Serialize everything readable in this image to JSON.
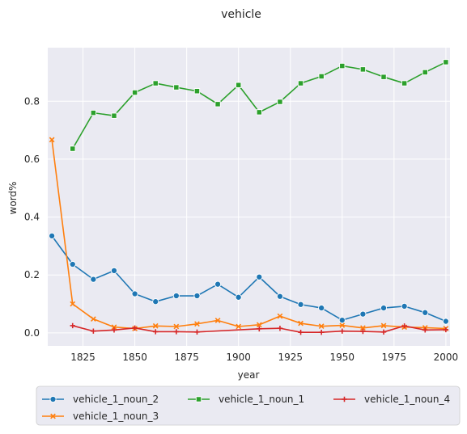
{
  "chart_data": {
    "type": "line",
    "title": "vehicle",
    "xlabel": "year",
    "ylabel": "word%",
    "xlim": [
      1808,
      2002
    ],
    "ylim": [
      -0.045,
      0.985
    ],
    "x_ticks": [
      1825,
      1850,
      1875,
      1900,
      1925,
      1950,
      1975,
      2000
    ],
    "y_ticks": [
      0.0,
      0.2,
      0.4,
      0.6,
      0.8
    ],
    "y_tick_labels": [
      "0.0",
      "0.2",
      "0.4",
      "0.6",
      "0.8"
    ],
    "grid": true,
    "legend_placement": "bottom",
    "series": [
      {
        "name": "vehicle_1_noun_2",
        "color": "#1f77b4",
        "marker": "circle",
        "points": [
          [
            1810,
            0.335
          ],
          [
            1820,
            0.237
          ],
          [
            1830,
            0.185
          ],
          [
            1840,
            0.215
          ],
          [
            1850,
            0.135
          ],
          [
            1860,
            0.108
          ],
          [
            1870,
            0.128
          ],
          [
            1880,
            0.128
          ],
          [
            1890,
            0.168
          ],
          [
            1900,
            0.123
          ],
          [
            1910,
            0.193
          ],
          [
            1920,
            0.126
          ],
          [
            1930,
            0.098
          ],
          [
            1940,
            0.086
          ],
          [
            1950,
            0.044
          ],
          [
            1960,
            0.065
          ],
          [
            1970,
            0.086
          ],
          [
            1980,
            0.092
          ],
          [
            1990,
            0.07
          ],
          [
            2000,
            0.04
          ]
        ]
      },
      {
        "name": "vehicle_1_noun_3",
        "color": "#ff7f0e",
        "marker": "x",
        "points": [
          [
            1810,
            0.667
          ],
          [
            1820,
            0.1
          ],
          [
            1830,
            0.048
          ],
          [
            1840,
            0.02
          ],
          [
            1850,
            0.015
          ],
          [
            1860,
            0.024
          ],
          [
            1870,
            0.022
          ],
          [
            1880,
            0.031
          ],
          [
            1890,
            0.043
          ],
          [
            1900,
            0.022
          ],
          [
            1910,
            0.028
          ],
          [
            1920,
            0.058
          ],
          [
            1930,
            0.033
          ],
          [
            1940,
            0.023
          ],
          [
            1950,
            0.026
          ],
          [
            1960,
            0.017
          ],
          [
            1970,
            0.025
          ],
          [
            1980,
            0.02
          ],
          [
            1990,
            0.018
          ],
          [
            2000,
            0.015
          ]
        ]
      },
      {
        "name": "vehicle_1_noun_1",
        "color": "#2ca02c",
        "marker": "square",
        "points": [
          [
            1820,
            0.636
          ],
          [
            1830,
            0.76
          ],
          [
            1840,
            0.75
          ],
          [
            1850,
            0.83
          ],
          [
            1860,
            0.862
          ],
          [
            1870,
            0.848
          ],
          [
            1880,
            0.835
          ],
          [
            1890,
            0.79
          ],
          [
            1900,
            0.856
          ],
          [
            1910,
            0.762
          ],
          [
            1920,
            0.798
          ],
          [
            1930,
            0.862
          ],
          [
            1940,
            0.886
          ],
          [
            1950,
            0.922
          ],
          [
            1960,
            0.91
          ],
          [
            1970,
            0.884
          ],
          [
            1980,
            0.862
          ],
          [
            1990,
            0.9
          ],
          [
            2000,
            0.935
          ]
        ]
      },
      {
        "name": "vehicle_1_noun_4",
        "color": "#d62728",
        "marker": "plus",
        "points": [
          [
            1820,
            0.025
          ],
          [
            1830,
            0.006
          ],
          [
            1840,
            0.01
          ],
          [
            1850,
            0.017
          ],
          [
            1860,
            0.004
          ],
          [
            1870,
            0.004
          ],
          [
            1880,
            0.003
          ],
          [
            1910,
            0.014
          ],
          [
            1920,
            0.016
          ],
          [
            1930,
            0.002
          ],
          [
            1940,
            0.002
          ],
          [
            1950,
            0.006
          ],
          [
            1960,
            0.005
          ],
          [
            1970,
            0.003
          ],
          [
            1980,
            0.024
          ],
          [
            1990,
            0.01
          ],
          [
            2000,
            0.011
          ]
        ]
      }
    ]
  }
}
